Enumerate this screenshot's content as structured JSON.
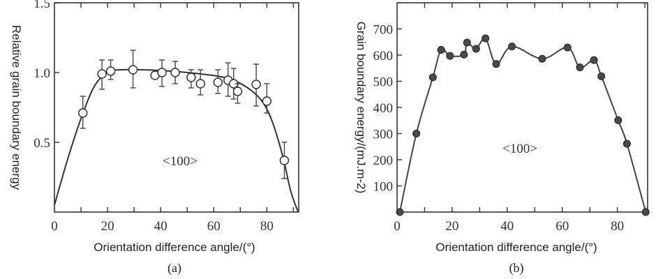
{
  "chart_data": [
    {
      "type": "scatter",
      "panel_label": "(a)",
      "xlabel": "Orientation difference angle/(°)",
      "ylabel": "Relative grain boundary energy",
      "annotation": "<100>",
      "xlim": [
        0,
        92
      ],
      "ylim": [
        0,
        1.5
      ],
      "xticks": [
        0,
        20,
        40,
        60,
        80
      ],
      "xtick_labels": [
        "0",
        "20",
        "40",
        "60",
        "80"
      ],
      "yticks": [
        0.5,
        1.0,
        1.5
      ],
      "ytick_labels": [
        "0.5",
        "1.0",
        "1.5"
      ],
      "grid": false,
      "marker": "open-circle",
      "points": [
        {
          "x": 10.7,
          "y": 0.71,
          "err_low": 0.6,
          "err_high": 0.83
        },
        {
          "x": 17.9,
          "y": 0.99,
          "err_low": 0.88,
          "err_high": 1.09
        },
        {
          "x": 21.2,
          "y": 1.01,
          "err_low": 0.95,
          "err_high": 1.09
        },
        {
          "x": 29.6,
          "y": 1.02,
          "err_low": 0.89,
          "err_high": 1.16
        },
        {
          "x": 37.9,
          "y": 0.98
        },
        {
          "x": 40.5,
          "y": 1.0,
          "err_low": 0.9,
          "err_high": 1.09
        },
        {
          "x": 45.5,
          "y": 1.0,
          "err_low": 0.92,
          "err_high": 1.08
        },
        {
          "x": 51.5,
          "y": 0.965,
          "err_low": 0.89,
          "err_high": 1.02
        },
        {
          "x": 55.0,
          "y": 0.92,
          "err_low": 0.84,
          "err_high": 1.02
        },
        {
          "x": 61.6,
          "y": 0.93,
          "err_low": 0.85,
          "err_high": 1.02
        },
        {
          "x": 65.4,
          "y": 0.945,
          "err_low": 0.83,
          "err_high": 1.07
        },
        {
          "x": 67.5,
          "y": 0.92,
          "err_low": 0.81,
          "err_high": 1.03
        },
        {
          "x": 69.0,
          "y": 0.865,
          "err_low": 0.78,
          "err_high": 0.92
        },
        {
          "x": 76.0,
          "y": 0.915,
          "err_low": 0.76,
          "err_high": 1.06
        },
        {
          "x": 80.0,
          "y": 0.795,
          "err_low": 0.71,
          "err_high": 0.92
        },
        {
          "x": 86.6,
          "y": 0.37,
          "err_low": 0.24,
          "err_high": 0.5
        }
      ],
      "fit_curve": [
        [
          0,
          0.05
        ],
        [
          5,
          0.38
        ],
        [
          10,
          0.67
        ],
        [
          15,
          0.9
        ],
        [
          20,
          1.0
        ],
        [
          25,
          1.02
        ],
        [
          40,
          1.015
        ],
        [
          55,
          0.99
        ],
        [
          65,
          0.96
        ],
        [
          72,
          0.9
        ],
        [
          78,
          0.8
        ],
        [
          82,
          0.65
        ],
        [
          86,
          0.4
        ],
        [
          89,
          0.15
        ],
        [
          91.8,
          0
        ]
      ]
    },
    {
      "type": "line",
      "panel_label": "(b)",
      "xlabel": "Orientation difference angle/(°)",
      "ylabel": "Grain boundary energy/(mJ.m-2)",
      "annotation": "<100>",
      "xlim": [
        0,
        91
      ],
      "ylim": [
        0,
        800
      ],
      "xticks": [
        0,
        20,
        40,
        60,
        80
      ],
      "xtick_labels": [
        "0",
        "20",
        "40",
        "60",
        "80"
      ],
      "yticks": [
        100,
        200,
        300,
        400,
        500,
        600,
        700
      ],
      "ytick_labels": [
        "100",
        "200",
        "300",
        "400",
        "500",
        "600",
        "700"
      ],
      "grid": false,
      "marker": "filled-circle",
      "points": [
        {
          "x": 1,
          "y": 0
        },
        {
          "x": 7,
          "y": 300
        },
        {
          "x": 13,
          "y": 515
        },
        {
          "x": 16,
          "y": 620
        },
        {
          "x": 19.2,
          "y": 597
        },
        {
          "x": 24.3,
          "y": 602
        },
        {
          "x": 25.4,
          "y": 648
        },
        {
          "x": 28.7,
          "y": 624
        },
        {
          "x": 32.1,
          "y": 664
        },
        {
          "x": 36,
          "y": 566
        },
        {
          "x": 41.7,
          "y": 633
        },
        {
          "x": 52.7,
          "y": 586
        },
        {
          "x": 61.9,
          "y": 629
        },
        {
          "x": 66.4,
          "y": 553
        },
        {
          "x": 71.5,
          "y": 581
        },
        {
          "x": 74.2,
          "y": 519
        },
        {
          "x": 80.3,
          "y": 351
        },
        {
          "x": 83.5,
          "y": 261
        },
        {
          "x": 90.3,
          "y": 0
        }
      ]
    }
  ]
}
